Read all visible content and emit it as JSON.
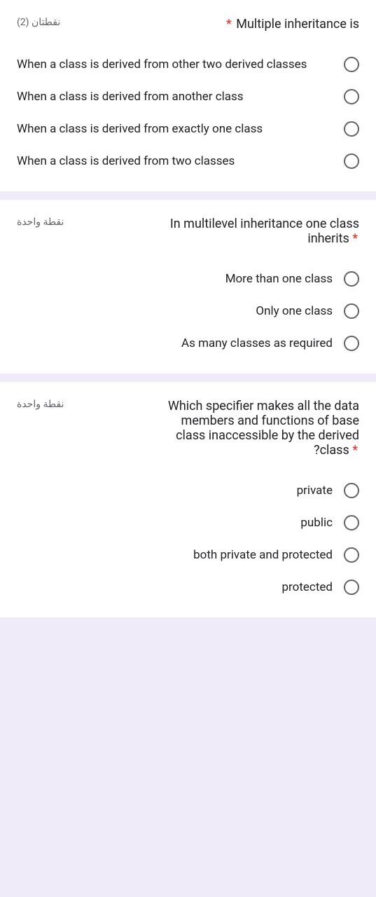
{
  "question1": {
    "points": "نقطتان (2)",
    "title": "Multiple inheritance is",
    "options": [
      "When a class is derived from other two derived classes",
      "When a class is derived from another class",
      "When a class is derived from exactly one class",
      "When a class is derived from two classes"
    ]
  },
  "question2": {
    "points": "نقطة واحدة",
    "title": "In multilevel inheritance one class inherits",
    "options": [
      "More than one class",
      "Only one class",
      "As many classes as required"
    ]
  },
  "question3": {
    "points": "نقطة واحدة",
    "title": "Which specifier makes all the data members and functions of base class inaccessible by the derived ?class",
    "options": [
      "private",
      "public",
      "both private and protected",
      "protected"
    ]
  }
}
